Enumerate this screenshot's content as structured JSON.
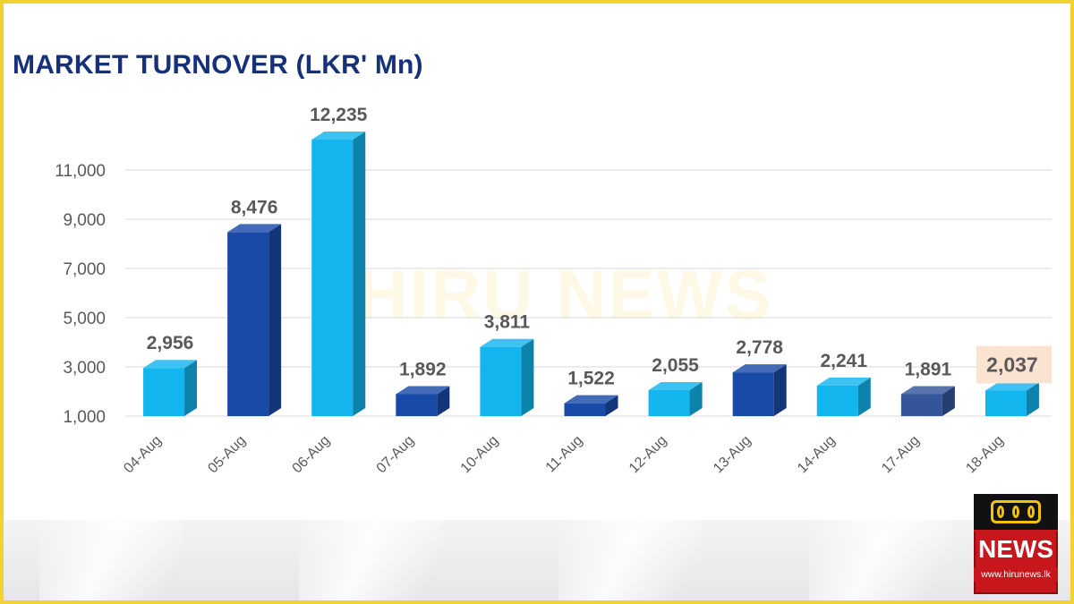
{
  "chart_data": {
    "type": "bar",
    "title": "MARKET TURNOVER (LKR' Mn)",
    "categories": [
      "04-Aug",
      "05-Aug",
      "06-Aug",
      "07-Aug",
      "10-Aug",
      "11-Aug",
      "12-Aug",
      "13-Aug",
      "14-Aug",
      "17-Aug",
      "18-Aug"
    ],
    "values": [
      2956,
      8476,
      12235,
      1892,
      3811,
      1522,
      2055,
      2778,
      2241,
      1891,
      2037
    ],
    "value_labels": [
      "2,956",
      "8,476",
      "12,235",
      "1,892",
      "3,811",
      "1,522",
      "2,055",
      "2,778",
      "2,241",
      "1,891",
      "2,037"
    ],
    "bar_colors": [
      "#12b5ee",
      "#1a4aa8",
      "#12b5ee",
      "#1a4aa8",
      "#12b5ee",
      "#1a4aa8",
      "#12b5ee",
      "#1a4aa8",
      "#12b5ee",
      "#35559a",
      "#12b5ee"
    ],
    "highlighted_label_index": 10,
    "highlight_color": "#fbe3d2",
    "yticks": [
      1000,
      3000,
      5000,
      7000,
      9000,
      11000
    ],
    "ytick_labels": [
      "1,000",
      "3,000",
      "5,000",
      "7,000",
      "9,000",
      "11,000"
    ],
    "ylim": [
      1000,
      11000
    ],
    "grid": true,
    "legend": false,
    "bar_style": "3d"
  },
  "watermark": "HIRU NEWS",
  "logo": {
    "name": "NEWS",
    "url": "www.hirunews.lk"
  },
  "colors": {
    "frame": "#f2d232",
    "title": "#16307a",
    "gridline": "#d9d9d9"
  }
}
